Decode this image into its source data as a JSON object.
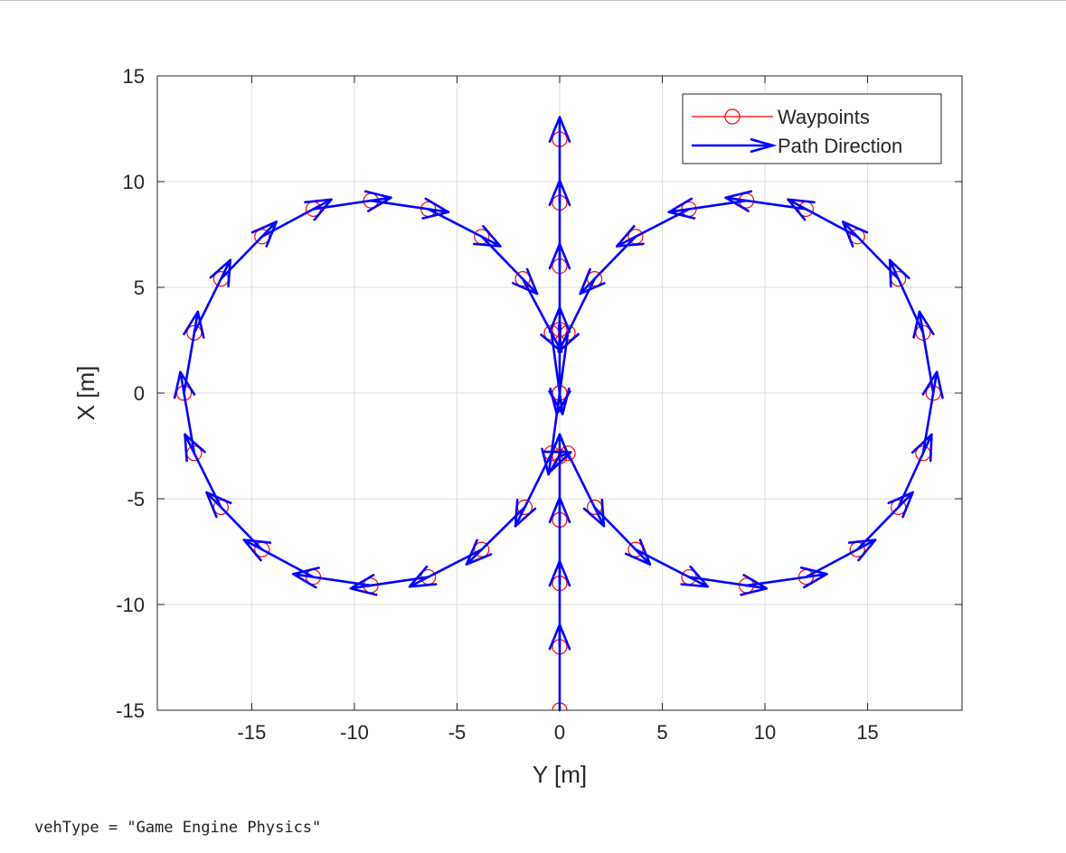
{
  "console": {
    "output_line": "vehType = \"Game Engine Physics\""
  },
  "chart_data": {
    "type": "line",
    "title": "",
    "xlabel": "Y [m]",
    "ylabel": "X [m]",
    "xlim": [
      -19.6,
      19.6
    ],
    "ylim": [
      -15,
      15
    ],
    "xticks": [
      -15,
      -10,
      -5,
      0,
      5,
      10,
      15
    ],
    "yticks": [
      -15,
      -10,
      -5,
      0,
      5,
      10,
      15
    ],
    "grid": true,
    "legend_position": "top-right",
    "legend": [
      "Waypoints",
      "Path Direction"
    ],
    "colors": {
      "waypoints": "#ff0000",
      "path_direction": "#0000ff",
      "grid": "#dedede",
      "axes": "#262626"
    },
    "series": [
      {
        "name": "Waypoints",
        "marker": "circle",
        "points": [
          [
            0,
            -15
          ],
          [
            0,
            -12
          ],
          [
            0,
            -9
          ],
          [
            0,
            -6
          ],
          [
            0,
            -3
          ],
          [
            0.4,
            -2.85
          ],
          [
            1.7,
            -5.4
          ],
          [
            3.7,
            -7.4
          ],
          [
            6.3,
            -8.7
          ],
          [
            9.1,
            -9.1
          ],
          [
            12.0,
            -8.7
          ],
          [
            14.5,
            -7.4
          ],
          [
            16.5,
            -5.4
          ],
          [
            17.7,
            -2.85
          ],
          [
            18.2,
            0
          ],
          [
            17.7,
            2.85
          ],
          [
            16.5,
            5.4
          ],
          [
            14.5,
            7.4
          ],
          [
            12.0,
            8.7
          ],
          [
            9.1,
            9.1
          ],
          [
            6.3,
            8.7
          ],
          [
            3.7,
            7.4
          ],
          [
            1.7,
            5.4
          ],
          [
            0.4,
            2.85
          ],
          [
            0,
            0
          ],
          [
            -0.4,
            -2.85
          ],
          [
            -1.7,
            -5.4
          ],
          [
            -3.8,
            -7.4
          ],
          [
            -6.4,
            -8.7
          ],
          [
            -9.2,
            -9.1
          ],
          [
            -12.0,
            -8.7
          ],
          [
            -14.5,
            -7.4
          ],
          [
            -16.5,
            -5.4
          ],
          [
            -17.8,
            -2.85
          ],
          [
            -18.3,
            0
          ],
          [
            -17.8,
            2.85
          ],
          [
            -16.5,
            5.4
          ],
          [
            -14.5,
            7.4
          ],
          [
            -12.0,
            8.7
          ],
          [
            -9.2,
            9.1
          ],
          [
            -6.4,
            8.7
          ],
          [
            -3.8,
            7.4
          ],
          [
            -1.8,
            5.4
          ],
          [
            -0.4,
            2.85
          ],
          [
            0,
            0
          ],
          [
            0,
            3
          ],
          [
            0,
            6
          ],
          [
            0,
            9
          ],
          [
            0,
            12
          ]
        ]
      },
      {
        "name": "Path Direction",
        "marker": "arrow",
        "arrow_scale": 1.35
      }
    ]
  }
}
